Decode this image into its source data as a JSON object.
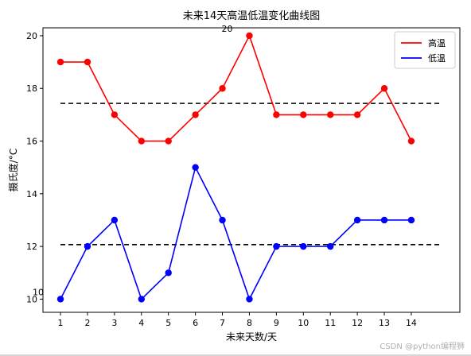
{
  "chart_data": {
    "type": "line",
    "title": "未来14天高温低温变化曲线图",
    "xlabel": "未来天数/天",
    "ylabel": "摄氏度/°C",
    "x": [
      1,
      2,
      3,
      4,
      5,
      6,
      7,
      8,
      9,
      10,
      11,
      12,
      13,
      14
    ],
    "xlim": [
      0.35,
      15.8
    ],
    "ylim": [
      9.5,
      20.3
    ],
    "yticks": [
      10,
      12,
      14,
      16,
      18,
      20
    ],
    "series": [
      {
        "name": "高温",
        "color": "#ff0000",
        "marker": "circle",
        "values": [
          19,
          19,
          17,
          16,
          16,
          17,
          18,
          20,
          17,
          17,
          17,
          17,
          18,
          16
        ]
      },
      {
        "name": "低温",
        "color": "#0000ff",
        "marker": "circle",
        "values": [
          10,
          12,
          13,
          10,
          11,
          15,
          13,
          10,
          12,
          12,
          12,
          13,
          13,
          13
        ]
      }
    ],
    "reference_lines": [
      {
        "y": 17.43,
        "style": "dashed",
        "color": "#000000"
      },
      {
        "y": 12.07,
        "style": "dashed",
        "color": "#000000"
      }
    ],
    "annotations": [
      {
        "text": "20",
        "x": 8,
        "y": 20
      },
      {
        "text": "10",
        "x": 1,
        "y": 10
      }
    ],
    "legend": "top-right",
    "grid": false
  },
  "watermark": "CSDN @python编程狮"
}
